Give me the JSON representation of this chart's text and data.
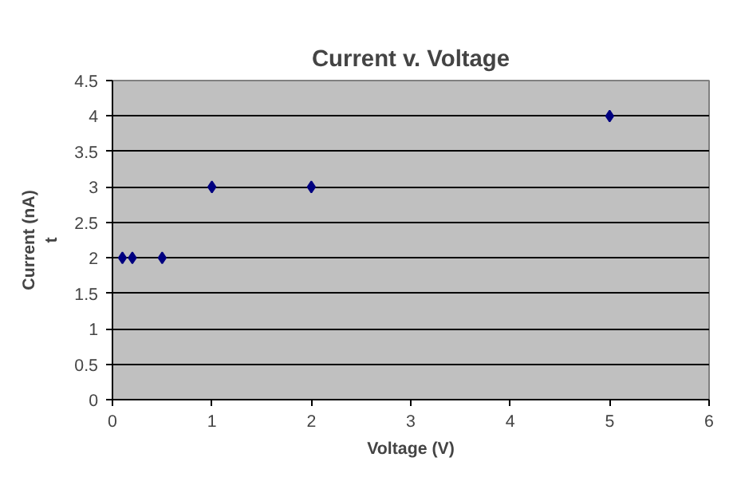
{
  "chart_data": {
    "type": "scatter",
    "title": "Current v. Voltage",
    "xlabel": "Voltage (V)",
    "ylabel": "Current (nA)\nt",
    "x": [
      0.1,
      0.2,
      0.5,
      1,
      2,
      5
    ],
    "series": [
      {
        "color": "#000080",
        "values": [
          2,
          2,
          2,
          3,
          3,
          4
        ]
      }
    ],
    "xlim": [
      0,
      6
    ],
    "xticks": [
      0,
      1,
      2,
      3,
      4,
      5,
      6
    ],
    "ylim": [
      0,
      4.5
    ],
    "yticks": [
      0,
      0.5,
      1,
      1.5,
      2,
      2.5,
      3,
      3.5,
      4,
      4.5
    ],
    "grid": "y",
    "marker": "diamond"
  }
}
